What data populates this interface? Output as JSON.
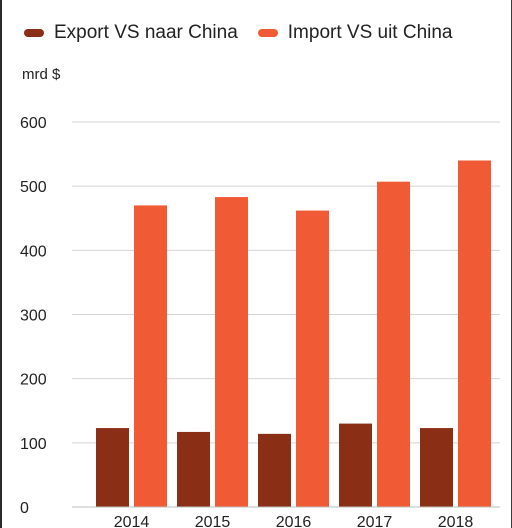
{
  "legend": {
    "export_label": "Export VS naar China",
    "import_label": "Import VS uit China"
  },
  "unit_label": "mrd $",
  "colors": {
    "export": "#8B2E16",
    "import": "#F05A35",
    "grid": "#d4d4d4"
  },
  "chart_data": {
    "type": "bar",
    "categories": [
      "2014",
      "2015",
      "2016",
      "2017",
      "2018"
    ],
    "series": [
      {
        "name": "Export VS naar China",
        "values": [
          123,
          117,
          114,
          130,
          123
        ]
      },
      {
        "name": "Import VS uit China",
        "values": [
          470,
          483,
          462,
          507,
          540
        ]
      }
    ],
    "ylabel": "mrd $",
    "ylim": [
      0,
      600
    ],
    "yticks": [
      0,
      100,
      200,
      300,
      400,
      500,
      600
    ],
    "grid": true,
    "legend_position": "top-left"
  }
}
